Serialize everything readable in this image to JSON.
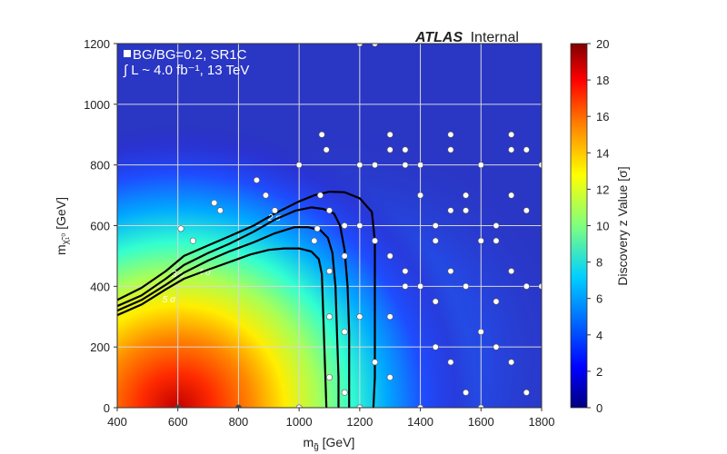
{
  "chart_data": {
    "type": "heatmap",
    "title": "",
    "experiment": {
      "bold": "ATLAS",
      "normal": "Internal"
    },
    "annotations": [
      "BG/BG=0.2, SR1C",
      "∫ L ~ 4.0 fb⁻¹, 13 TeV"
    ],
    "xlabel": "m_g̃ [GeV]",
    "ylabel": "m_χ̃₁⁰ [GeV]",
    "xlim": [
      400,
      1800
    ],
    "ylim": [
      0,
      1200
    ],
    "xticks": [
      400,
      600,
      800,
      1000,
      1200,
      1400,
      1600,
      1800
    ],
    "yticks": [
      0,
      200,
      400,
      600,
      800,
      1000,
      1200
    ],
    "colorbar": {
      "label": "Discovery z Value [σ]",
      "range": [
        0,
        20
      ],
      "ticks": [
        0,
        2,
        4,
        6,
        8,
        10,
        12,
        14,
        16,
        18,
        20
      ],
      "colormap": "jet",
      "colors": [
        "#00007f",
        "#0000ff",
        "#007fff",
        "#00ffff",
        "#7fff7f",
        "#ffff00",
        "#ff7f00",
        "#ff0000",
        "#7f0000"
      ]
    },
    "grid": true,
    "contours": [
      {
        "level": "2 σ",
        "points": [
          [
            400,
            355
          ],
          [
            480,
            395
          ],
          [
            560,
            450
          ],
          [
            620,
            500
          ],
          [
            700,
            535
          ],
          [
            770,
            565
          ],
          [
            850,
            600
          ],
          [
            920,
            640
          ],
          [
            1000,
            680
          ],
          [
            1050,
            700
          ],
          [
            1100,
            712
          ],
          [
            1150,
            710
          ],
          [
            1200,
            690
          ],
          [
            1240,
            645
          ],
          [
            1250,
            550
          ],
          [
            1250,
            400
          ],
          [
            1250,
            250
          ],
          [
            1250,
            100
          ],
          [
            1245,
            0
          ]
        ]
      },
      {
        "level": "3 σ",
        "points": [
          [
            400,
            335
          ],
          [
            480,
            370
          ],
          [
            560,
            425
          ],
          [
            620,
            470
          ],
          [
            700,
            510
          ],
          [
            770,
            540
          ],
          [
            850,
            580
          ],
          [
            920,
            620
          ],
          [
            990,
            650
          ],
          [
            1040,
            660
          ],
          [
            1080,
            655
          ],
          [
            1115,
            640
          ],
          [
            1135,
            600
          ],
          [
            1150,
            520
          ],
          [
            1160,
            400
          ],
          [
            1165,
            250
          ],
          [
            1165,
            100
          ],
          [
            1165,
            0
          ]
        ]
      },
      {
        "level": "4 σ",
        "points": [
          [
            400,
            320
          ],
          [
            480,
            355
          ],
          [
            560,
            405
          ],
          [
            620,
            445
          ],
          [
            700,
            485
          ],
          [
            770,
            515
          ],
          [
            850,
            545
          ],
          [
            920,
            575
          ],
          [
            985,
            595
          ],
          [
            1030,
            595
          ],
          [
            1070,
            585
          ],
          [
            1095,
            560
          ],
          [
            1110,
            510
          ],
          [
            1120,
            400
          ],
          [
            1125,
            250
          ],
          [
            1130,
            100
          ],
          [
            1130,
            0
          ]
        ]
      },
      {
        "level": "5 σ",
        "points": [
          [
            400,
            305
          ],
          [
            480,
            340
          ],
          [
            560,
            390
          ],
          [
            620,
            425
          ],
          [
            700,
            455
          ],
          [
            770,
            480
          ],
          [
            840,
            505
          ],
          [
            900,
            520
          ],
          [
            950,
            525
          ],
          [
            1000,
            525
          ],
          [
            1040,
            515
          ],
          [
            1065,
            490
          ],
          [
            1075,
            440
          ],
          [
            1080,
            300
          ],
          [
            1085,
            150
          ],
          [
            1090,
            0
          ]
        ]
      }
    ],
    "signal_points": [
      [
        600,
        0
      ],
      [
        800,
        0
      ],
      [
        1000,
        0
      ],
      [
        610,
        590
      ],
      [
        650,
        550
      ],
      [
        720,
        675
      ],
      [
        740,
        650
      ],
      [
        860,
        750
      ],
      [
        890,
        700
      ],
      [
        920,
        650
      ],
      [
        1000,
        800
      ],
      [
        1050,
        550
      ],
      [
        1060,
        590
      ],
      [
        1075,
        900
      ],
      [
        1090,
        850
      ],
      [
        1070,
        700
      ],
      [
        1100,
        650
      ],
      [
        1100,
        450
      ],
      [
        1100,
        300
      ],
      [
        1100,
        100
      ],
      [
        1150,
        600
      ],
      [
        1150,
        500
      ],
      [
        1150,
        250
      ],
      [
        1150,
        50
      ],
      [
        1200,
        1200
      ],
      [
        1200,
        800
      ],
      [
        1200,
        600
      ],
      [
        1200,
        300
      ],
      [
        1200,
        0
      ],
      [
        1250,
        1200
      ],
      [
        1250,
        800
      ],
      [
        1250,
        550
      ],
      [
        1250,
        150
      ],
      [
        1300,
        900
      ],
      [
        1300,
        850
      ],
      [
        1300,
        500
      ],
      [
        1300,
        300
      ],
      [
        1300,
        100
      ],
      [
        1350,
        850
      ],
      [
        1350,
        800
      ],
      [
        1350,
        450
      ],
      [
        1350,
        400
      ],
      [
        1400,
        800
      ],
      [
        1400,
        700
      ],
      [
        1400,
        400
      ],
      [
        1400,
        0
      ],
      [
        1450,
        600
      ],
      [
        1450,
        550
      ],
      [
        1450,
        350
      ],
      [
        1450,
        200
      ],
      [
        1500,
        900
      ],
      [
        1500,
        850
      ],
      [
        1500,
        650
      ],
      [
        1500,
        450
      ],
      [
        1500,
        150
      ],
      [
        1550,
        700
      ],
      [
        1550,
        650
      ],
      [
        1550,
        400
      ],
      [
        1550,
        50
      ],
      [
        1600,
        800
      ],
      [
        1600,
        550
      ],
      [
        1600,
        250
      ],
      [
        1600,
        0
      ],
      [
        1650,
        600
      ],
      [
        1650,
        550
      ],
      [
        1650,
        350
      ],
      [
        1650,
        200
      ],
      [
        1700,
        900
      ],
      [
        1700,
        850
      ],
      [
        1700,
        700
      ],
      [
        1700,
        450
      ],
      [
        1700,
        150
      ],
      [
        1750,
        850
      ],
      [
        1750,
        650
      ],
      [
        1750,
        400
      ],
      [
        1750,
        50
      ],
      [
        1800,
        800
      ],
      [
        1800,
        400
      ]
    ]
  }
}
